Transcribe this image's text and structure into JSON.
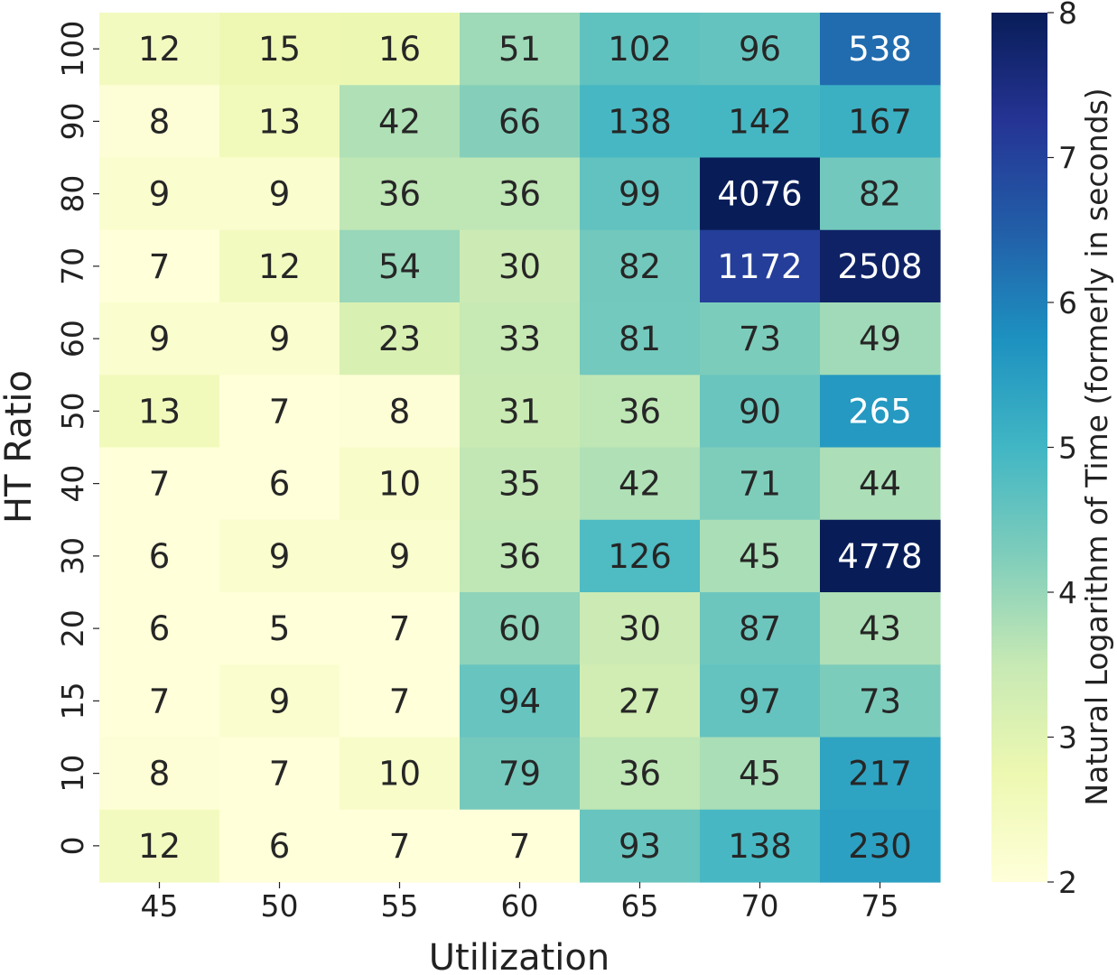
{
  "chart_data": {
    "type": "heatmap",
    "title": "",
    "xlabel": "Utilization",
    "ylabel": "HT Ratio",
    "x_categories": [
      "45",
      "50",
      "55",
      "60",
      "65",
      "70",
      "75"
    ],
    "y_categories": [
      "100",
      "90",
      "80",
      "70",
      "60",
      "50",
      "40",
      "30",
      "20",
      "15",
      "10",
      "0"
    ],
    "values": [
      [
        12,
        15,
        16,
        51,
        102,
        96,
        538
      ],
      [
        8,
        13,
        42,
        66,
        138,
        142,
        167
      ],
      [
        9,
        9,
        36,
        36,
        99,
        4076,
        82
      ],
      [
        7,
        12,
        54,
        30,
        82,
        1172,
        2508
      ],
      [
        9,
        9,
        23,
        33,
        81,
        73,
        49
      ],
      [
        13,
        7,
        8,
        31,
        36,
        90,
        265
      ],
      [
        7,
        6,
        10,
        35,
        42,
        71,
        44
      ],
      [
        6,
        9,
        9,
        36,
        126,
        45,
        4778
      ],
      [
        6,
        5,
        7,
        60,
        30,
        87,
        43
      ],
      [
        7,
        9,
        7,
        94,
        27,
        97,
        73
      ],
      [
        8,
        7,
        10,
        79,
        36,
        45,
        217
      ],
      [
        12,
        6,
        7,
        7,
        93,
        138,
        230
      ]
    ],
    "color_value": "natural log of cell value",
    "colorbar": {
      "label": "Natural Logarithm of Time (formerly in seconds)",
      "min": 2,
      "max": 8,
      "ticks": [
        "2",
        "3",
        "4",
        "5",
        "6",
        "7",
        "8"
      ],
      "colormap": "YlGnBu"
    },
    "colormap_stops": [
      "#ffffd9",
      "#edf8b1",
      "#c7e9b4",
      "#7fcdbb",
      "#41b6c4",
      "#1d91c0",
      "#225ea8",
      "#253494",
      "#081d58"
    ]
  }
}
